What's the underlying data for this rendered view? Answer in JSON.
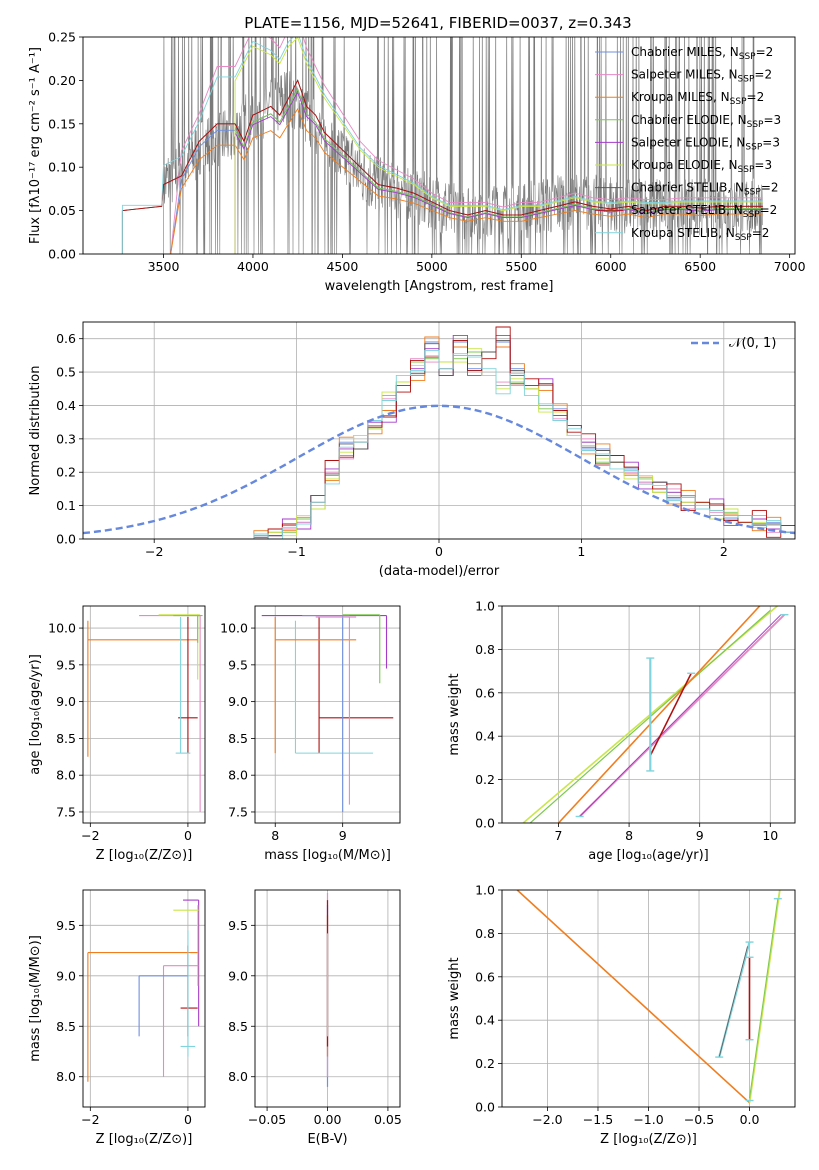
{
  "figure": {
    "title": "PLATE=1156, MJD=52641, FIBERID=0037, z=0.343"
  },
  "colors": {
    "chabrier_miles": "#6f8fe0",
    "salpeter_miles": "#e68ac6",
    "kroupa_miles": "#f07d1e",
    "chabrier_elodie": "#7ec850",
    "salpeter_elodie": "#a43cc8",
    "kroupa_elodie": "#c9e64a",
    "chabrier_stelib": "#5a5a5a",
    "salpeter_stelib": "#b01010",
    "kroupa_stelib": "#80d4dc",
    "normal_curve": "#6688dd",
    "grid": "#b0b0b0"
  },
  "chart_data": [
    {
      "id": "spectrum",
      "type": "line",
      "title": "PLATE=1156, MJD=52641, FIBERID=0037, z=0.343",
      "xlabel": "wavelength [Angstrom, rest frame]",
      "ylabel": "Flux [fλ10⁻¹⁷ erg cm⁻² s⁻¹ A⁻¹]",
      "xlim": [
        3050,
        7030
      ],
      "ylim": [
        0,
        0.25
      ],
      "xticks": [
        "3500",
        "4000",
        "4500",
        "5000",
        "5500",
        "6000",
        "6500",
        "7000"
      ],
      "yticks": [
        "0.00",
        "0.05",
        "0.10",
        "0.15",
        "0.20",
        "0.25"
      ],
      "grid": false,
      "legend_position": "top-right",
      "legend": [
        "Chabrier MILES, N_SSP=2",
        "Salpeter MILES, N_SSP=2",
        "Kroupa MILES, N_SSP=2",
        "Chabrier ELODIE, N_SSP=3",
        "Salpeter ELODIE, N_SSP=3",
        "Kroupa ELODIE, N_SSP=3",
        "Chabrier STELIB, N_SSP=2",
        "Salpeter STELIB, N_SSP=2",
        "Kroupa STELIB, N_SSP=2"
      ],
      "data_line": {
        "x": [
          3500,
          3700,
          3900,
          4000,
          4100,
          4200,
          4300,
          4400,
          4500,
          4700,
          4900,
          5100,
          5300,
          5500,
          5700,
          5900,
          6100,
          6300,
          6500,
          6700,
          6850
        ],
        "y": [
          0.08,
          0.12,
          0.14,
          0.16,
          0.17,
          0.18,
          0.16,
          0.13,
          0.11,
          0.08,
          0.07,
          0.05,
          0.05,
          0.05,
          0.06,
          0.06,
          0.055,
          0.055,
          0.055,
          0.055,
          0.055
        ]
      },
      "models": {
        "x": [
          3270,
          3490,
          3500,
          3600,
          3700,
          3800,
          3900,
          3950,
          4000,
          4100,
          4150,
          4200,
          4250,
          4300,
          4350,
          4400,
          4500,
          4600,
          4700,
          4800,
          4900,
          5000,
          5100,
          5200,
          5300,
          5400,
          5500,
          5600,
          5700,
          5800,
          5900,
          6000,
          6100,
          6200,
          6300,
          6400,
          6500,
          6600,
          6700,
          6850
        ],
        "salpeter_stelib": [
          0.05,
          0.055,
          0.08,
          0.09,
          0.13,
          0.15,
          0.15,
          0.13,
          0.16,
          0.17,
          0.16,
          0.18,
          0.2,
          0.17,
          0.16,
          0.14,
          0.12,
          0.1,
          0.08,
          0.076,
          0.07,
          0.06,
          0.05,
          0.045,
          0.05,
          0.045,
          0.045,
          0.05,
          0.055,
          0.06,
          0.055,
          0.052,
          0.055,
          0.05,
          0.055,
          0.055,
          0.053,
          0.055,
          0.055,
          0.055
        ],
        "kroupa_stelib": [
          0.055,
          0.055,
          0.1,
          0.11,
          0.15,
          0.2,
          0.2,
          0.22,
          0.24,
          0.23,
          0.22,
          0.24,
          0.25,
          0.22,
          0.2,
          0.18,
          0.15,
          0.12,
          0.1,
          0.09,
          0.08,
          0.065,
          0.055,
          0.055,
          0.055,
          0.05,
          0.055,
          0.055,
          0.06,
          0.065,
          0.06,
          0.058,
          0.06,
          0.058,
          0.058,
          0.06,
          0.06,
          0.06,
          0.06,
          0.06
        ]
      },
      "model_starts": {
        "chabrier_miles": 3540,
        "salpeter_miles": 3540,
        "kroupa_miles": 3540,
        "chabrier_elodie": 3900,
        "salpeter_elodie": 3900,
        "kroupa_elodie": 3900,
        "chabrier_stelib": 3270,
        "salpeter_stelib": 3270,
        "kroupa_stelib": 3270
      }
    },
    {
      "id": "residuals",
      "type": "line",
      "xlabel": "(data-model)/error",
      "ylabel": "Normed distribution",
      "xlim": [
        -2.5,
        2.5
      ],
      "ylim": [
        0,
        0.65
      ],
      "xticks": [
        "−2",
        "−1",
        "0",
        "1",
        "2"
      ],
      "yticks": [
        "0.0",
        "0.1",
        "0.2",
        "0.3",
        "0.4",
        "0.5",
        "0.6"
      ],
      "grid": true,
      "legend_position": "top-right",
      "legend": [
        "𝒩(0, 1)"
      ],
      "bin_edges": [
        -1.3,
        -1.2,
        -1.1,
        -1.0,
        -0.9,
        -0.8,
        -0.7,
        -0.6,
        -0.5,
        -0.4,
        -0.3,
        -0.2,
        -0.1,
        0.0,
        0.1,
        0.2,
        0.3,
        0.4,
        0.5,
        0.6,
        0.7,
        0.8,
        0.9,
        1.0,
        1.1,
        1.2,
        1.3,
        1.4,
        1.5,
        1.6,
        1.7,
        1.8,
        1.9,
        2.0,
        2.1,
        2.2,
        2.3,
        2.4,
        2.5
      ],
      "hist_a": [
        0.0,
        0.02,
        0.03,
        0.06,
        0.12,
        0.2,
        0.28,
        0.28,
        0.32,
        0.38,
        0.45,
        0.5,
        0.58,
        0.5,
        0.58,
        0.52,
        0.55,
        0.6,
        0.5,
        0.47,
        0.45,
        0.4,
        0.33,
        0.28,
        0.26,
        0.24,
        0.2,
        0.18,
        0.16,
        0.13,
        0.12,
        0.1,
        0.09,
        0.07,
        0.06,
        0.05,
        0.04,
        0.03
      ],
      "hist_b": [
        0.0,
        0.01,
        0.03,
        0.05,
        0.1,
        0.18,
        0.26,
        0.3,
        0.35,
        0.42,
        0.48,
        0.52,
        0.55,
        0.52,
        0.55,
        0.55,
        0.5,
        0.45,
        0.48,
        0.44,
        0.4,
        0.36,
        0.32,
        0.28,
        0.24,
        0.22,
        0.2,
        0.17,
        0.15,
        0.13,
        0.11,
        0.1,
        0.08,
        0.07,
        0.06,
        0.05,
        0.04,
        0.03
      ]
    },
    {
      "id": "age-vs-z",
      "type": "scatter",
      "xlabel": "Z [log₁₀(Z/Z⊙)]",
      "ylabel": "age  [log₁₀(age/yr)]",
      "xlim": [
        -2.15,
        0.35
      ],
      "ylim": [
        7.35,
        10.3
      ],
      "xticks": [
        "−2",
        "0"
      ],
      "yticks": [
        "7.5",
        "8.0",
        "8.5",
        "9.0",
        "9.5",
        "10.0"
      ],
      "grid": true
    },
    {
      "id": "age-vs-mass",
      "type": "scatter",
      "xlabel": "mass [log₁₀(M/M⊙)]",
      "xlim": [
        7.7,
        9.85
      ],
      "ylim": [
        7.35,
        10.3
      ],
      "xticks": [
        "8",
        "9"
      ],
      "yticks": [
        "7.5",
        "8.0",
        "8.5",
        "9.0",
        "9.5",
        "10.0"
      ],
      "grid": true
    },
    {
      "id": "weight-vs-age",
      "type": "line",
      "xlabel": "age  [log₁₀(age/yr)]",
      "ylabel": "mass weight",
      "xlim": [
        6.2,
        10.35
      ],
      "ylim": [
        0,
        1.0
      ],
      "xticks": [
        "7",
        "8",
        "9",
        "10"
      ],
      "yticks": [
        "0.0",
        "0.2",
        "0.4",
        "0.6",
        "0.8",
        "1.0"
      ],
      "grid": true
    },
    {
      "id": "mass-vs-z",
      "type": "scatter",
      "xlabel": "Z [log₁₀(Z/Z⊙)]",
      "ylabel": "mass [log₁₀(M/M⊙)]",
      "xlim": [
        -2.15,
        0.35
      ],
      "ylim": [
        7.7,
        9.85
      ],
      "xticks": [
        "−2",
        "0"
      ],
      "yticks": [
        "8.0",
        "8.5",
        "9.0",
        "9.5"
      ],
      "grid": true
    },
    {
      "id": "mass-vs-ebv",
      "type": "scatter",
      "xlabel": "E(B-V)",
      "xlim": [
        -0.06,
        0.06
      ],
      "ylim": [
        7.7,
        9.85
      ],
      "xticks": [
        "−0.05",
        "0.00",
        "0.05"
      ],
      "yticks": [
        "8.0",
        "8.5",
        "9.0",
        "9.5"
      ],
      "grid": true
    },
    {
      "id": "weight-vs-z",
      "type": "line",
      "xlabel": "Z [log₁₀(Z/Z⊙)]",
      "ylabel": "mass weight",
      "xlim": [
        -2.45,
        0.45
      ],
      "ylim": [
        0,
        1.0
      ],
      "xticks": [
        "−2.0",
        "−1.5",
        "−1.0",
        "−0.5",
        "0.0"
      ],
      "yticks": [
        "0.0",
        "0.2",
        "0.4",
        "0.6",
        "0.8",
        "1.0"
      ],
      "grid": true
    }
  ]
}
